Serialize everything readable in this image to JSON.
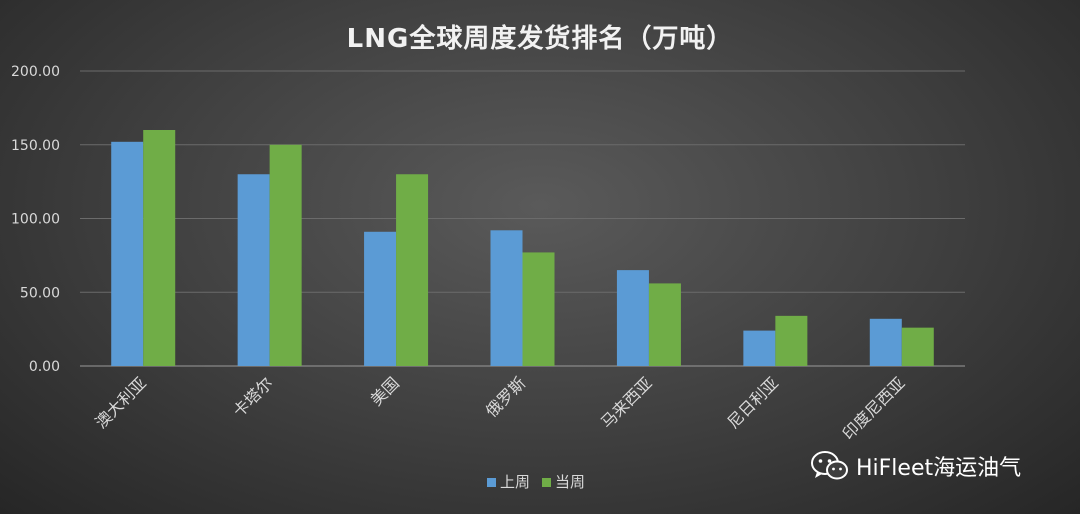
{
  "watermark": {
    "text": "HiFleet海运油气",
    "icon": "wechat-icon"
  },
  "chart_data": {
    "type": "bar",
    "title": "LNG全球周度发货排名（万吨）",
    "categories": [
      "澳大利亚",
      "卡塔尔",
      "美国",
      "俄罗斯",
      "马来西亚",
      "尼日利亚",
      "印度尼西亚"
    ],
    "series": [
      {
        "name": "上周",
        "color": "#5b9bd5",
        "values": [
          152,
          130,
          91,
          92,
          65,
          24,
          32
        ]
      },
      {
        "name": "当周",
        "color": "#70ad47",
        "values": [
          160,
          150,
          130,
          77,
          56,
          34,
          26
        ]
      }
    ],
    "ylim": [
      0,
      200
    ],
    "yticks": [
      "0.00",
      "50.00",
      "100.00",
      "150.00",
      "200.00"
    ],
    "grid": true,
    "legend": "bottom-center"
  }
}
